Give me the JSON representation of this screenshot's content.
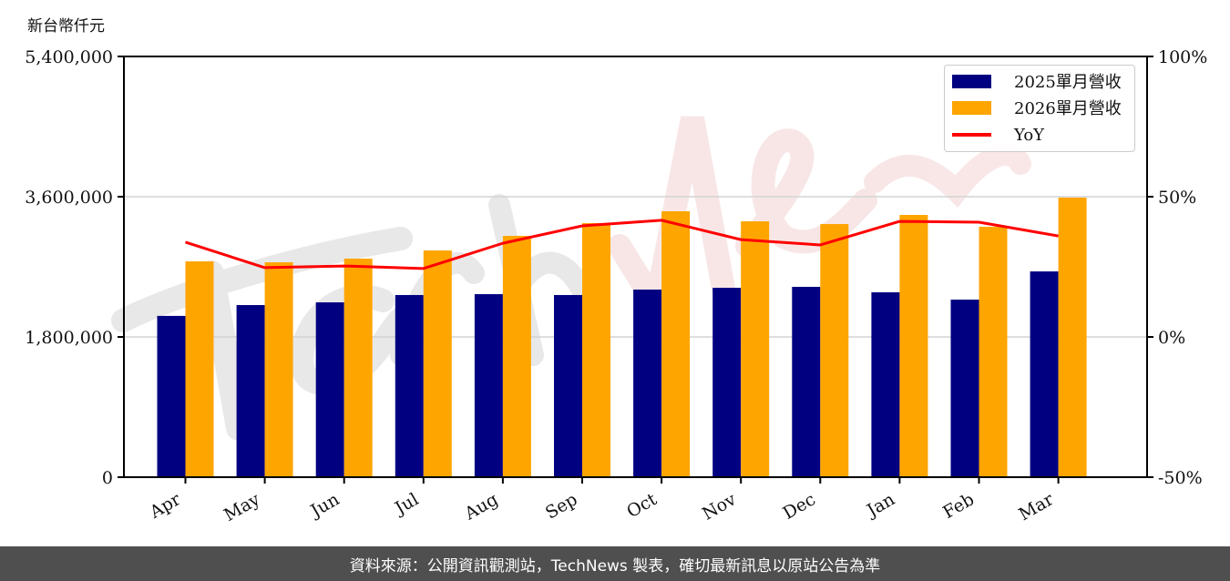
{
  "unit_label": "新台幣仟元",
  "footer_text": "資料來源：公開資訊觀測站，TechNews 製表，確切最新訊息以原站公告為準",
  "watermark": "TechNews",
  "colors": {
    "series_2025": "#000080",
    "series_2026": "#FFA500",
    "yoy": "#FF0000",
    "grid": "#D3D3D3",
    "footer_bg": "#4F4F4F"
  },
  "legend": {
    "items": [
      {
        "label": "2025單月營收",
        "type": "bar",
        "color": "#000080"
      },
      {
        "label": "2026單月營收",
        "type": "bar",
        "color": "#FFA500"
      },
      {
        "label": "YoY",
        "type": "line",
        "color": "#FF0000"
      }
    ]
  },
  "axes": {
    "left_ticks": [
      "0",
      "1,800,000",
      "3,600,000",
      "5,400,000"
    ],
    "right_ticks": [
      "-50%",
      "0%",
      "50%",
      "100%"
    ]
  },
  "chart_data": {
    "type": "bar",
    "title": "",
    "xlabel": "",
    "ylabel": "新台幣仟元",
    "y2label": "YoY",
    "categories": [
      "Apr",
      "May",
      "Jun",
      "Jul",
      "Aug",
      "Sep",
      "Oct",
      "Nov",
      "Dec",
      "Jan",
      "Feb",
      "Mar"
    ],
    "ylim": [
      0,
      5400000
    ],
    "y2lim": [
      -50,
      100
    ],
    "yticks": [
      0,
      1800000,
      3600000,
      5400000
    ],
    "y2ticks": [
      -50,
      0,
      50,
      100
    ],
    "grid": true,
    "legend_position": "upper right",
    "series": [
      {
        "name": "2025單月營收",
        "type": "bar",
        "axis": "left",
        "values": [
          2070000,
          2209000,
          2244000,
          2338000,
          2349000,
          2338000,
          2408000,
          2431000,
          2443000,
          2373000,
          2279000,
          2641000
        ]
      },
      {
        "name": "2026單月營收",
        "type": "bar",
        "axis": "left",
        "values": [
          2770000,
          2758000,
          2805000,
          2910000,
          3097000,
          3261000,
          3413000,
          3284000,
          3249000,
          3366000,
          3214000,
          3588000
        ]
      },
      {
        "name": "YoY",
        "type": "line",
        "axis": "right",
        "unit": "%",
        "values": [
          33.8,
          24.7,
          25.3,
          24.4,
          33.4,
          39.6,
          41.6,
          34.7,
          32.8,
          41.2,
          40.9,
          36.0
        ]
      }
    ]
  }
}
